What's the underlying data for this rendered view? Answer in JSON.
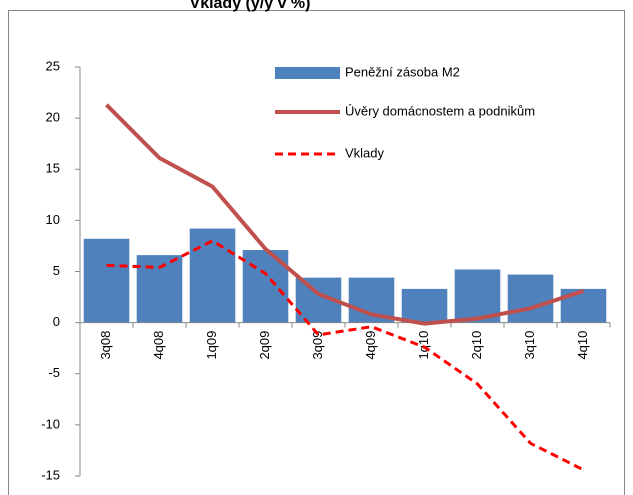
{
  "chart_data": {
    "type": "bar",
    "title": "Vklady (y/y v %)",
    "categories": [
      "3q08",
      "4q08",
      "1q09",
      "2q09",
      "3q09",
      "4q09",
      "1q10",
      "2q10",
      "3q10",
      "4q10"
    ],
    "series": [
      {
        "name": "Peněžní zásoba M2",
        "type": "bar",
        "color": "#4f81bd",
        "values": [
          8.2,
          6.6,
          9.2,
          7.1,
          4.4,
          4.4,
          3.3,
          5.2,
          4.7,
          3.3
        ]
      },
      {
        "name": "Úvěry domácnostem a podnikům",
        "type": "line",
        "color": "#c0504d",
        "dashed": false,
        "values": [
          21.3,
          16.1,
          13.3,
          7.2,
          2.8,
          0.8,
          -0.1,
          0.4,
          1.4,
          3.1
        ]
      },
      {
        "name": "Vklady",
        "type": "line",
        "color": "#ff0000",
        "dashed": true,
        "values": [
          5.6,
          5.4,
          8.0,
          4.8,
          -1.2,
          -0.4,
          -2.4,
          -6.0,
          -11.8,
          -14.4
        ]
      }
    ],
    "ylim": [
      -15,
      25
    ],
    "yticks": [
      -15,
      -10,
      -5,
      0,
      5,
      10,
      15,
      20,
      25
    ],
    "grid": false,
    "legend": "top-right"
  }
}
